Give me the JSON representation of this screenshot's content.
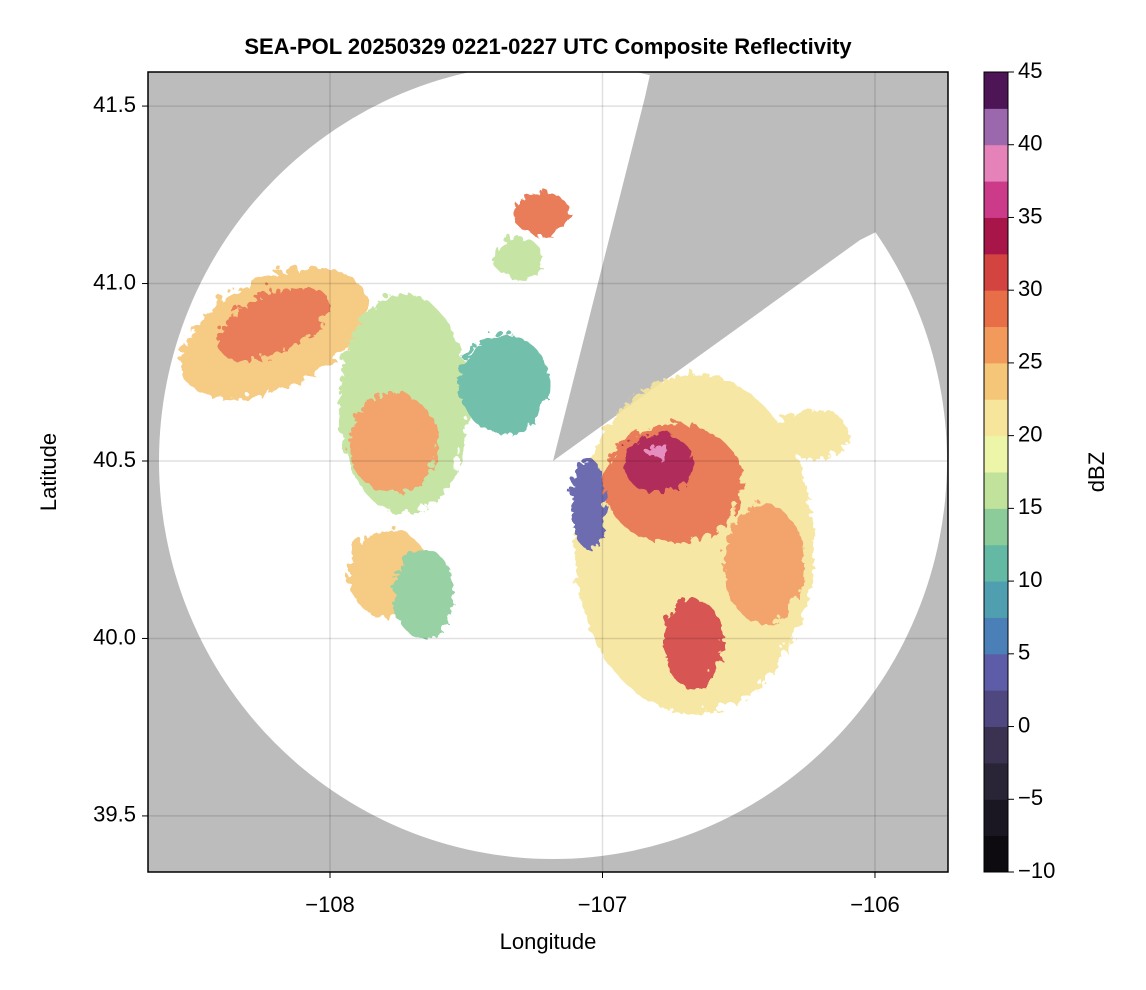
{
  "chart_data": {
    "type": "heatmap",
    "title": "SEA-POL 20250329 0221-0227 UTC Composite Reflectivity",
    "xlabel": "Longitude",
    "ylabel": "Latitude",
    "xlim": [
      -108.668,
      -105.732
    ],
    "ylim": [
      39.342,
      41.596
    ],
    "xticks": [
      {
        "value": -108,
        "label": "−108"
      },
      {
        "value": -107,
        "label": "−107"
      },
      {
        "value": -106,
        "label": "−106"
      }
    ],
    "yticks": [
      39.5,
      {
        "value": 40,
        "label": "40.0"
      },
      40.5,
      {
        "value": 41,
        "label": "41.0"
      },
      41.5
    ],
    "grid": true,
    "colorbar_label": "dBZ",
    "clim": [
      -10,
      45
    ],
    "cticks": [
      {
        "value": -10,
        "label": "−10"
      },
      {
        "value": -5,
        "label": "−5"
      },
      0,
      5,
      10,
      15,
      20,
      25,
      30,
      35,
      40,
      45
    ],
    "colormap": [
      "#0d0a10",
      "#1b1722",
      "#2a2536",
      "#3a3250",
      "#4f4880",
      "#5d5ca8",
      "#4a7fb8",
      "#4f9fb0",
      "#63b9a3",
      "#8ccc9a",
      "#c0e29b",
      "#ecf5a8",
      "#f6e59a",
      "#f5c677",
      "#f19a5b",
      "#e76e46",
      "#d3433f",
      "#a81549",
      "#cc3a8a",
      "#e582b9",
      "#9c68ad",
      "#4d1556"
    ]
  }
}
